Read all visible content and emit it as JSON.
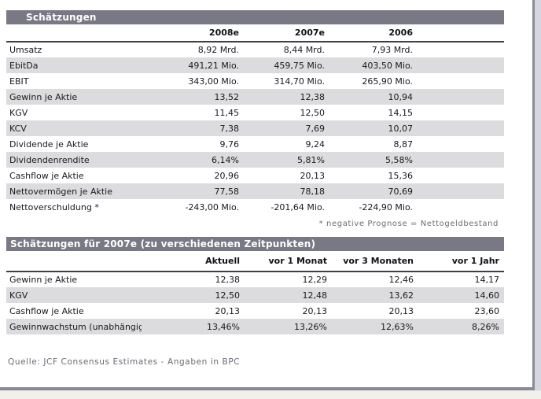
{
  "colors": {
    "bar-bg": "#797985",
    "row-alt": "#dcdcde",
    "rule-dark": "#3f3f49",
    "border-gray": "#8b8b97",
    "gutter-lavender": "#d5d6df",
    "gutter-beige": "#f2f0ea",
    "muted": "#6b6b76"
  },
  "page": {
    "footnote": "* negative Prognose = Nettogeldbestand",
    "source": "Quelle: JCF Consensus Estimates - Angaben in BPC"
  },
  "table1": {
    "title": "Schätzungen",
    "columns": [
      "2008e",
      "2007e",
      "2006"
    ],
    "rows": [
      {
        "label": "Umsatz",
        "values": [
          "8,92 Mrd.",
          "8,44 Mrd.",
          "7,93 Mrd."
        ]
      },
      {
        "label": "EbitDa",
        "values": [
          "491,21 Mio.",
          "459,75 Mio.",
          "403,50 Mio."
        ]
      },
      {
        "label": "EBIT",
        "values": [
          "343,00 Mio.",
          "314,70 Mio.",
          "265,90 Mio."
        ]
      },
      {
        "label": "Gewinn je Aktie",
        "values": [
          "13,52",
          "12,38",
          "10,94"
        ]
      },
      {
        "label": "KGV",
        "values": [
          "11,45",
          "12,50",
          "14,15"
        ]
      },
      {
        "label": "KCV",
        "values": [
          "7,38",
          "7,69",
          "10,07"
        ]
      },
      {
        "label": "Dividende je Aktie",
        "values": [
          "9,76",
          "9,24",
          "8,87"
        ]
      },
      {
        "label": "Dividendenrendite",
        "values": [
          "6,14%",
          "5,81%",
          "5,58%"
        ]
      },
      {
        "label": "Cashflow je Aktie",
        "values": [
          "20,96",
          "20,13",
          "15,36"
        ]
      },
      {
        "label": "Nettovermögen je Aktie",
        "values": [
          "77,58",
          "78,18",
          "70,69"
        ]
      },
      {
        "label": "Nettoverschuldung *",
        "values": [
          "-243,00 Mio.",
          "-201,64 Mio.",
          "-224,90 Mio."
        ]
      }
    ]
  },
  "table2": {
    "title": "Schätzungen für 2007e (zu verschiedenen Zeitpunkten)",
    "columns": [
      "Aktuell",
      "vor 1 Monat",
      "vor 3 Monaten",
      "vor 1 Jahr"
    ],
    "rows": [
      {
        "label": "Gewinn je Aktie",
        "values": [
          "12,38",
          "12,29",
          "12,46",
          "14,17"
        ]
      },
      {
        "label": "KGV",
        "values": [
          "12,50",
          "12,48",
          "13,62",
          "14,60"
        ]
      },
      {
        "label": "Cashflow je Aktie",
        "values": [
          "20,13",
          "20,13",
          "20,13",
          "23,60"
        ]
      },
      {
        "label": "Gewinnwachstum (unabhängige Schätzung)",
        "values": [
          "13,46%",
          "13,26%",
          "12,63%",
          "8,26%"
        ]
      }
    ]
  }
}
